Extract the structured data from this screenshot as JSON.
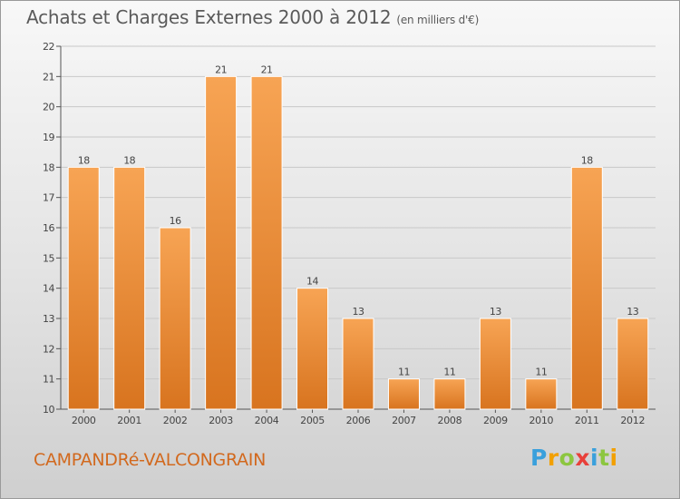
{
  "header": {
    "title": "Achats et Charges Externes 2000 à 2012",
    "subtitle": "(en milliers d'€)"
  },
  "footer": {
    "commune": "CAMPANDRé-VALCONGRAIN",
    "brand_letters": [
      "P",
      "r",
      "o",
      "x",
      "i",
      "t",
      "i"
    ]
  },
  "chart_data": {
    "type": "bar",
    "title": "Achats et Charges Externes 2000 à 2012",
    "subtitle": "(en milliers d'€)",
    "categories": [
      "2000",
      "2001",
      "2002",
      "2003",
      "2004",
      "2005",
      "2006",
      "2007",
      "2008",
      "2009",
      "2010",
      "2011",
      "2012"
    ],
    "values": [
      18,
      18,
      16,
      21,
      21,
      14,
      13,
      11,
      11,
      13,
      11,
      18,
      13
    ],
    "data_labels": [
      "18",
      "18",
      "16",
      "21",
      "21",
      "14",
      "13",
      "11",
      "11",
      "13",
      "11",
      "18",
      "13"
    ],
    "yticks": [
      "10",
      "11",
      "12",
      "13",
      "14",
      "15",
      "16",
      "17",
      "18",
      "19",
      "20",
      "21",
      "22"
    ],
    "ylim": [
      10,
      22
    ],
    "grid": "horizontal",
    "colors": {
      "bar_top": "#f7a454",
      "bar_bottom": "#d8741f",
      "bar_edge": "#ffffff",
      "axis": "#555555",
      "grid": "#c8c8c8",
      "label": "#444444"
    }
  }
}
